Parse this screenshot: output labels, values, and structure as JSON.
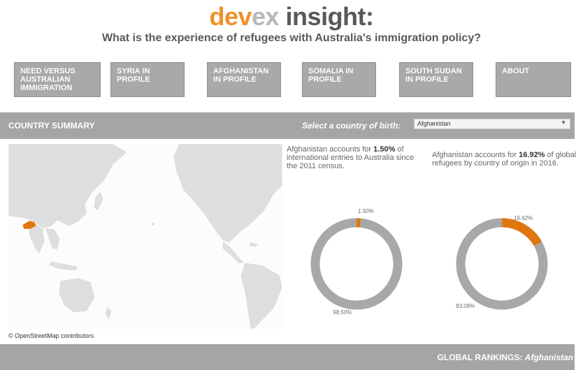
{
  "header": {
    "logo": {
      "part1": "dev",
      "part2": "ex",
      "part3": " insight:"
    },
    "subtitle": "What is the experience of refugees with Australia's immigration policy?"
  },
  "nav": {
    "need": "NEED VERSUS AUSTRALIAN IMMIGRATION",
    "syria": "SYRIA IN PROFILE",
    "afghanistan": "AFGHANISTAN IN PROFILE",
    "somalia": "SOMALIA IN PROFILE",
    "south_sudan": "SOUTH SUDAN IN PROFILE",
    "about": "ABOUT"
  },
  "summary": {
    "title": "COUNTRY SUMMARY",
    "select_label": "Select a country of birth:",
    "selected_country": "Afghanistan"
  },
  "stats": {
    "entries": {
      "country": "Afghanistan",
      "pre": " accounts for ",
      "value": "1.50%",
      "post": " of international entries to Australia since the 2011 census."
    },
    "refugees": {
      "country": "Afghanistan",
      "pre": " accounts for ",
      "value": "16.92%",
      "post": " of global refugees by country of origin in 2016."
    }
  },
  "chart_data": [
    {
      "type": "pie",
      "values": [
        1.5,
        98.5
      ],
      "labels": [
        "1.50%",
        "98.50%"
      ],
      "colors": [
        "#e0760f",
        "#a8a8a8"
      ]
    },
    {
      "type": "pie",
      "values": [
        16.92,
        83.08
      ],
      "labels": [
        "16.92%",
        "83.08%"
      ],
      "colors": [
        "#e0760f",
        "#a8a8a8"
      ]
    }
  ],
  "map": {
    "credit": "© OpenStreetMap contributors",
    "highlight_color": "#e0760f"
  },
  "footer": {
    "global_label": "GLOBAL RANKINGS: ",
    "country": "Afghanistan"
  }
}
